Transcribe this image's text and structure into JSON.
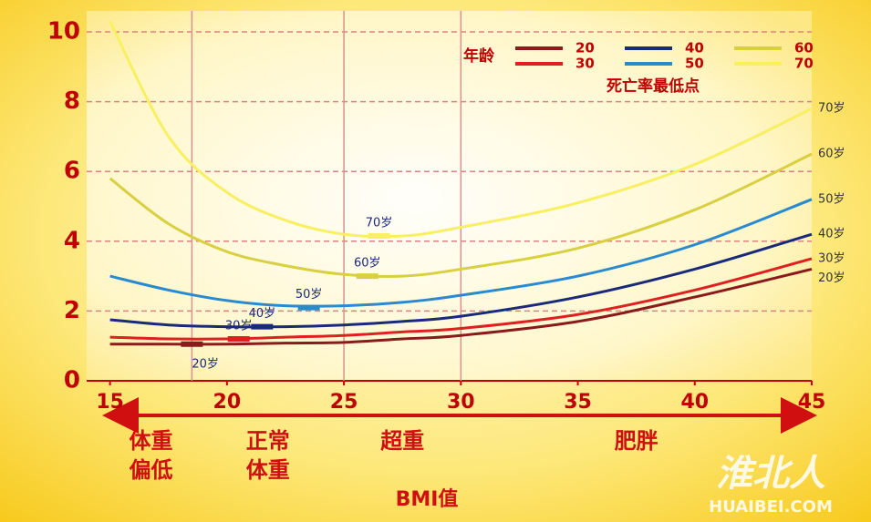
{
  "chart_data": {
    "type": "line",
    "x": [
      15,
      17.5,
      20,
      22.5,
      25,
      27.5,
      30,
      35,
      40,
      45
    ],
    "series": [
      {
        "name": "20",
        "end_label": "20岁",
        "color": "#8b1a1a",
        "values": [
          1.05,
          1.05,
          1.05,
          1.08,
          1.1,
          1.2,
          1.3,
          1.7,
          2.4,
          3.2
        ],
        "min": {
          "x": 18.5,
          "y": 1.05
        }
      },
      {
        "name": "30",
        "end_label": "30岁",
        "color": "#e02020",
        "values": [
          1.25,
          1.2,
          1.2,
          1.25,
          1.3,
          1.4,
          1.5,
          1.9,
          2.6,
          3.5
        ],
        "min": {
          "x": 20.5,
          "y": 1.2
        }
      },
      {
        "name": "40",
        "end_label": "40岁",
        "color": "#1a2a7a",
        "values": [
          1.75,
          1.6,
          1.55,
          1.55,
          1.6,
          1.7,
          1.85,
          2.4,
          3.2,
          4.2
        ],
        "min": {
          "x": 21.5,
          "y": 1.55
        }
      },
      {
        "name": "50",
        "end_label": "50岁",
        "color": "#2a8ad0",
        "values": [
          3.0,
          2.6,
          2.3,
          2.15,
          2.15,
          2.25,
          2.45,
          3.0,
          3.9,
          5.2
        ],
        "min": {
          "x": 23.5,
          "y": 2.1
        }
      },
      {
        "name": "60",
        "end_label": "60岁",
        "color": "#d8d040",
        "values": [
          5.8,
          4.5,
          3.7,
          3.3,
          3.05,
          3.0,
          3.2,
          3.8,
          4.9,
          6.5
        ],
        "min": {
          "x": 26,
          "y": 3.0
        }
      },
      {
        "name": "70",
        "end_label": "70岁",
        "color": "#f8f060",
        "values": [
          10.3,
          7.0,
          5.4,
          4.6,
          4.2,
          4.15,
          4.4,
          5.1,
          6.2,
          7.8
        ],
        "min": {
          "x": 26.5,
          "y": 4.15
        }
      }
    ],
    "xlim": [
      14,
      45
    ],
    "ylim": [
      0,
      10.6
    ],
    "xticks": [
      15,
      20,
      25,
      30,
      35,
      40,
      45
    ],
    "yticks": [
      0,
      2,
      4,
      6,
      8,
      10
    ],
    "grid": true,
    "boundaries": [
      18.5,
      25,
      30
    ],
    "regions": [
      {
        "label": [
          "体重",
          "偏低"
        ]
      },
      {
        "label": [
          "正常",
          "体重"
        ]
      },
      {
        "label": [
          "超重"
        ]
      },
      {
        "label": [
          "肥胖"
        ]
      }
    ],
    "x_label": "BMI值",
    "legend_title": "年龄",
    "min_note": "死亡率最低点",
    "watermark": [
      "淮北人",
      "HUAIBEI.COM"
    ]
  }
}
